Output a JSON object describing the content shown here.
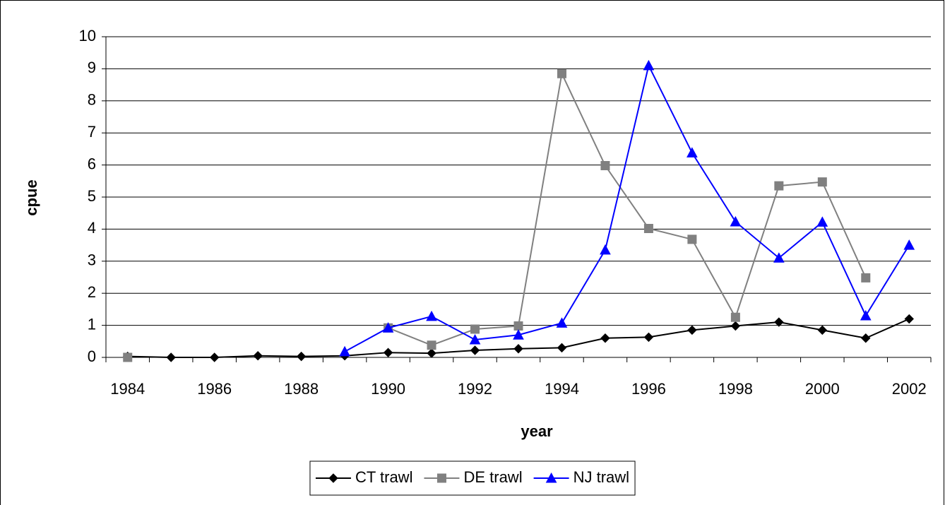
{
  "chart_data": {
    "type": "line",
    "x_label": "year",
    "y_label": "cpue",
    "categories": [
      "1984",
      null,
      "1986",
      null,
      "1988",
      null,
      "1990",
      null,
      "1992",
      null,
      "1994",
      null,
      "1996",
      null,
      "1998",
      null,
      "2000",
      null,
      "2002"
    ],
    "series": [
      {
        "name": "CT trawl",
        "color": "#000000",
        "marker": "diamond",
        "values": [
          0.03,
          0,
          0,
          0.05,
          0.03,
          0.05,
          0.15,
          0.13,
          0.22,
          0.27,
          0.3,
          0.6,
          0.63,
          0.85,
          0.98,
          1.1,
          0.85,
          0.6,
          1.2
        ]
      },
      {
        "name": "DE trawl",
        "color": "#808080",
        "marker": "square",
        "values": [
          0,
          null,
          null,
          null,
          null,
          null,
          0.92,
          0.38,
          0.88,
          0.98,
          8.85,
          5.98,
          4.02,
          3.68,
          1.25,
          5.35,
          5.47,
          2.48,
          null
        ]
      },
      {
        "name": "NJ trawl",
        "color": "#0000ff",
        "marker": "triangle",
        "values": [
          null,
          null,
          null,
          null,
          null,
          0.18,
          0.92,
          1.28,
          0.55,
          0.7,
          1.07,
          3.35,
          9.1,
          6.38,
          4.23,
          3.1,
          4.22,
          1.3,
          3.5
        ]
      }
    ],
    "ylim": [
      0,
      10
    ],
    "yticks": [
      0,
      1,
      2,
      3,
      4,
      5,
      6,
      7,
      8,
      9,
      10
    ],
    "grid": true,
    "legend": "bottom"
  }
}
